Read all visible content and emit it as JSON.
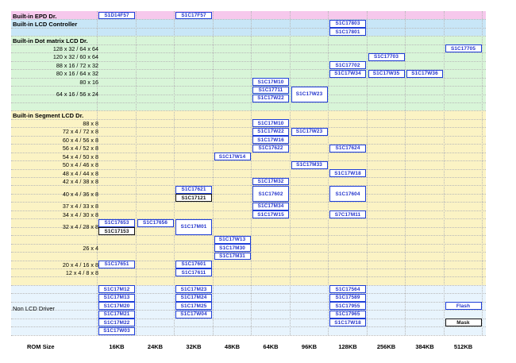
{
  "columns": [
    "16KB",
    "24KB",
    "32KB",
    "48KB",
    "64KB",
    "96KB",
    "128KB",
    "256KB",
    "384KB",
    "512KB"
  ],
  "footer_label": "ROM Size",
  "sections": [
    {
      "label": "Built-in EPD Dr.",
      "color": "#f6c8ec",
      "row": 0
    },
    {
      "label": "Built-in LCD Controller",
      "color": "#c8e6f7",
      "row": 1
    },
    {
      "label": "Built-in Dot matrix LCD Dr.",
      "color": "#d8f5d8",
      "row": 3
    },
    {
      "label": "Built-in Segment LCD Dr.",
      "color": "#fbf3c4",
      "row": 12
    },
    {
      "label": "Non LCD Driver",
      "color": "#e8f4fd",
      "row": 33
    }
  ],
  "row_labels": [
    {
      "text": "128 x 32 / 64 x 64",
      "row": 4
    },
    {
      "text": "120 x 32 / 60 x 64",
      "row": 5
    },
    {
      "text": "88 x 16 / 72 x 32",
      "row": 6
    },
    {
      "text": "80 x 16 / 64 x 32",
      "row": 7
    },
    {
      "text": "80 x 16",
      "row": 8
    },
    {
      "text": "64 x 16 / 56 x 24",
      "row": 9.5
    },
    {
      "text": "88 x 8",
      "row": 13
    },
    {
      "text": "72 x 4 / 72 x 8",
      "row": 14
    },
    {
      "text": "60 x 4 / 56 x 8",
      "row": 15
    },
    {
      "text": "56 x 4 / 52 x 8",
      "row": 16
    },
    {
      "text": "54 x 4 / 50 x 8",
      "row": 17
    },
    {
      "text": "50 x 4 / 46 x 8",
      "row": 18
    },
    {
      "text": "48 x 4 / 44 x 8",
      "row": 19
    },
    {
      "text": "42 x 4 / 38 x 8",
      "row": 20
    },
    {
      "text": "40 x 4 / 36 x 8",
      "row": 21.5
    },
    {
      "text": "37 x 4 / 33 x 8",
      "row": 23
    },
    {
      "text": "34 x 4 / 30 x 8",
      "row": 24
    },
    {
      "text": "32 x 4 / 28 x 8",
      "row": 25.5
    },
    {
      "text": "26 x 4",
      "row": 28
    },
    {
      "text": "20 x 4 / 16 x 8",
      "row": 30
    },
    {
      "text": "12 x 4 /   8 x 8",
      "row": 31
    }
  ],
  "non_lcd_label_row": 35.5,
  "chips": [
    {
      "text": "S1D14F57",
      "col": 0,
      "row": 0
    },
    {
      "text": "S1C17F57",
      "col": 2,
      "row": 0
    },
    {
      "text": "S1C17803",
      "col": 6,
      "row": 1
    },
    {
      "text": "S1C17801",
      "col": 6,
      "row": 2
    },
    {
      "text": "S1C17705",
      "col": 9,
      "row": 4
    },
    {
      "text": "S1C17703",
      "col": 7,
      "row": 5
    },
    {
      "text": "S1C17702",
      "col": 6,
      "row": 6
    },
    {
      "text": "S1C17W34",
      "col": 6,
      "row": 7
    },
    {
      "text": "S1C17W35",
      "col": 7,
      "row": 7
    },
    {
      "text": "S1C17W36",
      "col": 8,
      "row": 7
    },
    {
      "text": "S1C17M10",
      "col": 4,
      "row": 8
    },
    {
      "text": "S1C17711",
      "col": 4,
      "row": 9
    },
    {
      "text": "S1C17W22",
      "col": 4,
      "row": 10
    },
    {
      "text": "S1C17W23",
      "col": 5,
      "row": 9,
      "span": 2
    },
    {
      "text": "S1C17M10",
      "col": 4,
      "row": 13
    },
    {
      "text": "S1C17W22",
      "col": 4,
      "row": 14
    },
    {
      "text": "S1C17W23",
      "col": 5,
      "row": 14
    },
    {
      "text": "S1C17W16",
      "col": 4,
      "row": 15
    },
    {
      "text": "S1C17622",
      "col": 4,
      "row": 16
    },
    {
      "text": "S1C17624",
      "col": 6,
      "row": 16
    },
    {
      "text": "S1C17W14",
      "col": 3,
      "row": 17
    },
    {
      "text": "S1C17M33",
      "col": 5,
      "row": 18
    },
    {
      "text": "S1C17W18",
      "col": 6,
      "row": 19
    },
    {
      "text": "S1C17M32",
      "col": 4,
      "row": 20
    },
    {
      "text": "S1C17621",
      "col": 2,
      "row": 21
    },
    {
      "text": "S1C17121",
      "col": 2,
      "row": 22,
      "black": true
    },
    {
      "text": "S1C17602",
      "col": 4,
      "row": 21,
      "span": 2
    },
    {
      "text": "S1C17604",
      "col": 6,
      "row": 21,
      "span": 2
    },
    {
      "text": "S1C17M34",
      "col": 4,
      "row": 23
    },
    {
      "text": "S1C17W15",
      "col": 4,
      "row": 24
    },
    {
      "text": "S7C17M11",
      "col": 6,
      "row": 24
    },
    {
      "text": "S1C17653",
      "col": 0,
      "row": 25
    },
    {
      "text": "S1C17153",
      "col": 0,
      "row": 26,
      "black": true
    },
    {
      "text": "S1C17656",
      "col": 1,
      "row": 25
    },
    {
      "text": "S1C17M01",
      "col": 2,
      "row": 25,
      "span": 2
    },
    {
      "text": "S1C17W13",
      "col": 3,
      "row": 27
    },
    {
      "text": "S1C17M30",
      "col": 3,
      "row": 28
    },
    {
      "text": "S1C17M31",
      "col": 3,
      "row": 29
    },
    {
      "text": "S1C17651",
      "col": 0,
      "row": 30
    },
    {
      "text": "S1C17601",
      "col": 2,
      "row": 30
    },
    {
      "text": "S1C17611",
      "col": 2,
      "row": 31
    },
    {
      "text": "S1C17M12",
      "col": 0,
      "row": 33
    },
    {
      "text": "S1C17M13",
      "col": 0,
      "row": 34
    },
    {
      "text": "S1C17M20",
      "col": 0,
      "row": 35
    },
    {
      "text": "S1C17M21",
      "col": 0,
      "row": 36
    },
    {
      "text": "S1C17M22",
      "col": 0,
      "row": 37
    },
    {
      "text": "S1C17W03",
      "col": 0,
      "row": 38
    },
    {
      "text": "S1C17M23",
      "col": 2,
      "row": 33
    },
    {
      "text": "S1C17M24",
      "col": 2,
      "row": 34
    },
    {
      "text": "S1C17M25",
      "col": 2,
      "row": 35
    },
    {
      "text": "S1C17W04",
      "col": 2,
      "row": 36
    },
    {
      "text": "S1C17564",
      "col": 6,
      "row": 33
    },
    {
      "text": "S1C17589",
      "col": 6,
      "row": 34
    },
    {
      "text": "S1C17955",
      "col": 6,
      "row": 35
    },
    {
      "text": "S1C17965",
      "col": 6,
      "row": 36
    },
    {
      "text": "S1C17W18",
      "col": 6,
      "row": 37
    },
    {
      "text": "Flash",
      "col": 9,
      "row": 35
    },
    {
      "text": "Mask",
      "col": 9,
      "row": 37,
      "black": true
    }
  ]
}
